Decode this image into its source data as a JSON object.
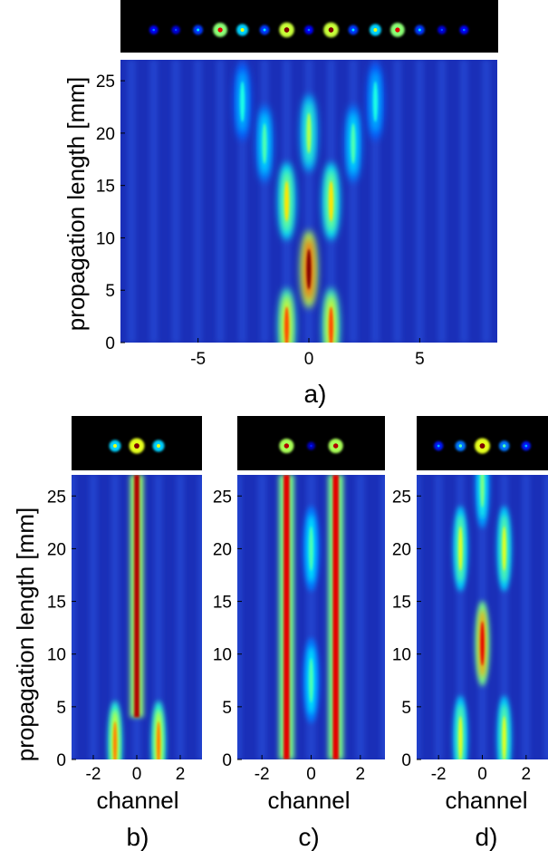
{
  "figure": {
    "ylabel": "propagation length [mm]",
    "channel_label": "channel"
  },
  "chart_data": [
    {
      "type": "heatmap",
      "panel_label": "a)",
      "xlabel": "",
      "ylabel": "propagation length [mm]",
      "xlim": [
        -8.5,
        8.5
      ],
      "ylim": [
        0,
        27
      ],
      "x_ticks": [
        -5,
        0,
        5
      ],
      "y_ticks": [
        0,
        5,
        10,
        15,
        20,
        25
      ],
      "colormap": "jet",
      "output_intensity_channels": [
        -7,
        -6,
        -5,
        -4,
        -3,
        -2,
        -1,
        0,
        1,
        2,
        3,
        4,
        5,
        6,
        7
      ],
      "output_intensity_values": [
        0.2,
        0.15,
        0.3,
        0.85,
        0.55,
        0.3,
        0.95,
        0.2,
        0.95,
        0.3,
        0.55,
        0.85,
        0.3,
        0.15,
        0.2
      ],
      "features": [
        {
          "channel": 0,
          "z": 7,
          "intensity": 1.0
        },
        {
          "channel": -1,
          "z": 1.5,
          "intensity": 0.8
        },
        {
          "channel": 1,
          "z": 1.5,
          "intensity": 0.8
        },
        {
          "channel": -1,
          "z": 13.5,
          "intensity": 0.65
        },
        {
          "channel": 1,
          "z": 13.5,
          "intensity": 0.65
        },
        {
          "channel": 0,
          "z": 20,
          "intensity": 0.55
        },
        {
          "channel": -2,
          "z": 19,
          "intensity": 0.45
        },
        {
          "channel": 2,
          "z": 19,
          "intensity": 0.45
        },
        {
          "channel": -3,
          "z": 23,
          "intensity": 0.4
        },
        {
          "channel": 3,
          "z": 23,
          "intensity": 0.4
        }
      ]
    },
    {
      "type": "heatmap",
      "panel_label": "b)",
      "xlabel": "channel",
      "ylabel": "propagation length [mm]",
      "xlim": [
        -3,
        3
      ],
      "ylim": [
        0,
        27
      ],
      "x_ticks": [
        -2,
        0,
        2
      ],
      "y_ticks": [
        0,
        5,
        10,
        15,
        20,
        25
      ],
      "colormap": "jet",
      "output_intensity_channels": [
        -1,
        0,
        1
      ],
      "output_intensity_values": [
        0.55,
        1.0,
        0.55
      ],
      "features": [
        {
          "channel": 0,
          "z_range": [
            4,
            27
          ],
          "intensity": 0.95
        },
        {
          "channel": -1,
          "z": 1.5,
          "intensity": 0.75
        },
        {
          "channel": 1,
          "z": 1.5,
          "intensity": 0.75
        }
      ]
    },
    {
      "type": "heatmap",
      "panel_label": "c)",
      "xlabel": "channel",
      "ylabel": "",
      "xlim": [
        -3,
        3
      ],
      "ylim": [
        0,
        27
      ],
      "x_ticks": [
        -2,
        0,
        2
      ],
      "y_ticks": [
        0,
        5,
        10,
        15,
        20,
        25
      ],
      "colormap": "jet",
      "output_intensity_channels": [
        -1,
        0,
        1
      ],
      "output_intensity_values": [
        0.9,
        0.1,
        0.9
      ],
      "features": [
        {
          "channel": -1,
          "z_range": [
            0,
            27
          ],
          "intensity": 0.9
        },
        {
          "channel": 1,
          "z_range": [
            0,
            27
          ],
          "intensity": 0.9
        },
        {
          "channel": 0,
          "z": 7.5,
          "intensity": 0.45
        },
        {
          "channel": 0,
          "z": 20,
          "intensity": 0.45
        }
      ]
    },
    {
      "type": "heatmap",
      "panel_label": "d)",
      "xlabel": "channel",
      "ylabel": "",
      "xlim": [
        -3,
        3
      ],
      "ylim": [
        0,
        27
      ],
      "x_ticks": [
        -2,
        0,
        2
      ],
      "y_ticks": [
        0,
        5,
        10,
        15,
        20,
        25
      ],
      "colormap": "jet",
      "output_intensity_channels": [
        -2,
        -1,
        0,
        1,
        2
      ],
      "output_intensity_values": [
        0.25,
        0.4,
        1.0,
        0.4,
        0.25
      ],
      "features": [
        {
          "channel": 0,
          "z": 11,
          "intensity": 0.9
        },
        {
          "channel": -1,
          "z": 2,
          "intensity": 0.6
        },
        {
          "channel": 1,
          "z": 2,
          "intensity": 0.6
        },
        {
          "channel": -1,
          "z": 20,
          "intensity": 0.6
        },
        {
          "channel": 1,
          "z": 20,
          "intensity": 0.6
        },
        {
          "channel": 0,
          "z": 26,
          "intensity": 0.5
        }
      ]
    }
  ]
}
